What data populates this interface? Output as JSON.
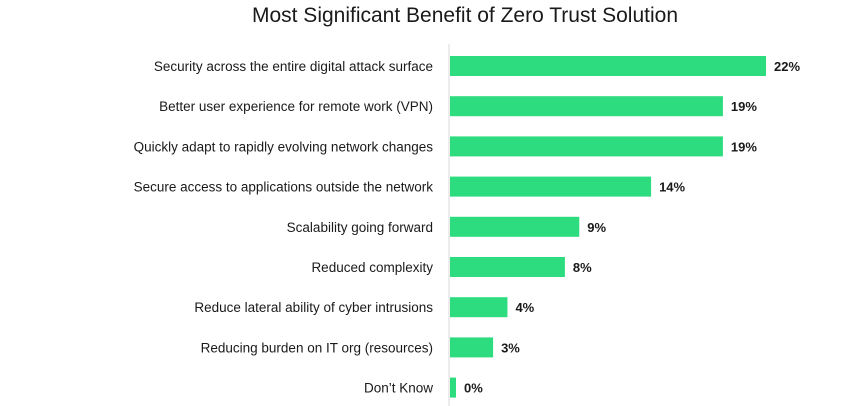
{
  "chart_data": {
    "type": "bar",
    "orientation": "horizontal",
    "title": "Most Significant Benefit of Zero Trust Solution",
    "xlabel": "",
    "ylabel": "",
    "unit": "%",
    "xlim": [
      0,
      22
    ],
    "grid": false,
    "legend": "none",
    "bar_color": "#2ddc7e",
    "axis_color": "#d9d9d9",
    "categories": [
      "Security across the entire digital attack surface",
      "Better user experience for remote work (VPN)",
      "Quickly adapt to rapidly evolving network changes",
      "Secure access to applications outside the network",
      "Scalability going forward",
      "Reduced complexity",
      "Reduce lateral ability of cyber intrusions",
      "Reducing burden on IT org (resources)",
      "Don’t Know"
    ],
    "values": [
      22,
      19,
      19,
      14,
      9,
      8,
      4,
      3,
      0
    ],
    "value_labels": [
      "22%",
      "19%",
      "19%",
      "14%",
      "9%",
      "8%",
      "4%",
      "3%",
      "0%"
    ]
  }
}
